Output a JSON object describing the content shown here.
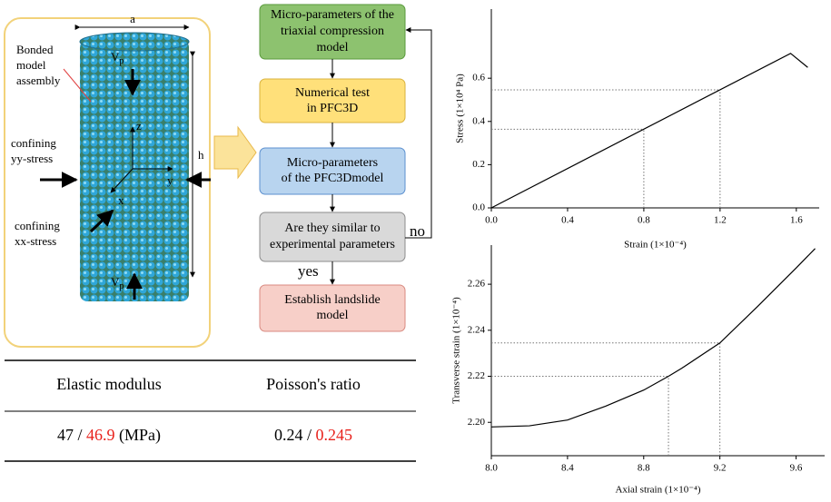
{
  "specimen": {
    "width_label": "a",
    "height_label": "h",
    "assembly_label": [
      "Bonded",
      "model",
      "assembly"
    ],
    "velocity_top": {
      "symbol": "V",
      "subscript": "p"
    },
    "velocity_bottom": {
      "symbol": "V",
      "subscript": "p"
    },
    "axes": {
      "z": "z",
      "y": "y",
      "x": "x"
    },
    "yy_stress": [
      "confining",
      "yy-stress"
    ],
    "xx_stress": [
      "confining",
      "xx-stress"
    ]
  },
  "flowchart": {
    "nodes": [
      {
        "lines": [
          "Micro-parameters of the",
          "triaxial compression",
          "model"
        ]
      },
      {
        "lines": [
          "Numerical test",
          "in PFC3D"
        ]
      },
      {
        "lines": [
          "Micro-parameters",
          "of the PFC3Dmodel"
        ]
      },
      {
        "lines": [
          "Are they similar to",
          "experimental parameters"
        ]
      },
      {
        "lines": [
          "Establish landslide",
          "model"
        ]
      }
    ],
    "edge_labels": {
      "loop": "no",
      "forward": "yes"
    }
  },
  "table": {
    "header": [
      "Elastic modulus",
      "Poisson's ratio"
    ],
    "rows": [
      [
        [
          {
            "text": "47"
          },
          {
            "text": " / "
          },
          {
            "text": "46.9",
            "color": "#e8211b"
          },
          {
            "text": " (MPa)"
          }
        ],
        [
          {
            "text": "0.24"
          },
          {
            "text": " / "
          },
          {
            "text": "0.245",
            "color": "#e8211b"
          }
        ]
      ]
    ]
  },
  "chart_data": [
    {
      "type": "line",
      "x_label": "Strain (1×10⁻⁴)",
      "y_label": "Stress (1×10⁴ Pa)",
      "x": [
        0,
        1.57,
        1.66
      ],
      "values": [
        0,
        0.715,
        0.65
      ],
      "color": "#000000",
      "xlim": [
        0,
        1.72
      ],
      "ylim": [
        0,
        0.92
      ],
      "xticks": [
        {
          "value": 0,
          "label": "0.0"
        },
        0.4,
        0.8,
        1.2,
        1.6
      ],
      "yticks": [
        {
          "value": 0,
          "label": "0.0"
        },
        0.2,
        0.4,
        0.6
      ],
      "guides": [
        {
          "x": 0.8,
          "y": 0.364
        },
        {
          "x": 1.2,
          "y": 0.546
        }
      ]
    },
    {
      "type": "line",
      "x_label": "Axial strain (1×10⁻⁴)",
      "y_label": "Transverse strain (1×10⁻⁴)",
      "x": [
        8.0,
        8.2,
        8.4,
        8.6,
        8.8,
        8.93,
        9.0,
        9.2,
        9.4,
        9.6,
        9.7
      ],
      "values": [
        2.198,
        2.1985,
        2.201,
        2.207,
        2.214,
        2.22,
        2.2235,
        2.2345,
        2.2505,
        2.267,
        2.2755
      ],
      "color": "#000000",
      "xlim": [
        8.0,
        9.75
      ],
      "ylim": [
        2.1855,
        2.277
      ],
      "xticks": [
        {
          "value": 8,
          "label": "8.0"
        },
        8.4,
        8.8,
        9.2,
        9.6
      ],
      "yticks": [
        {
          "value": 2.2,
          "label": "2.20"
        },
        2.22,
        2.24,
        2.26
      ],
      "guides": [
        {
          "x": 8.93,
          "y": 2.22
        },
        {
          "x": 9.2,
          "y": 2.2345
        }
      ]
    }
  ]
}
